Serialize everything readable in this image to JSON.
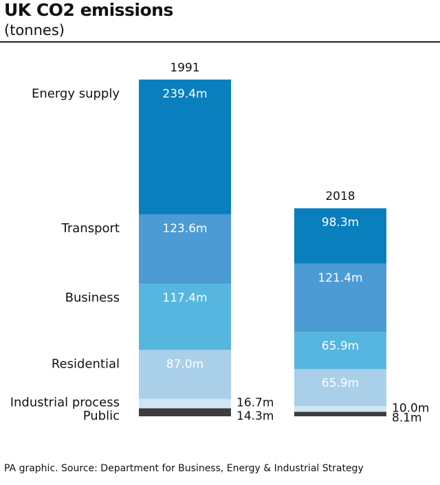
{
  "header": {
    "title": "UK CO2 emissions",
    "subtitle": "(tonnes)"
  },
  "footer": {
    "source": "PA graphic. Source: Department for Business, Energy & Industrial Strategy"
  },
  "chart_data": {
    "type": "bar",
    "stacked": true,
    "title": "UK CO2 emissions",
    "subtitle": "(tonnes)",
    "unit": "m tonnes",
    "categories": [
      "1991",
      "2018"
    ],
    "series": [
      {
        "name": "Public",
        "values": [
          14.3,
          8.1
        ],
        "labels": [
          "14.3m",
          "8.1m"
        ],
        "color": "#3d3d3f"
      },
      {
        "name": "Industrial process",
        "values": [
          16.7,
          10.0
        ],
        "labels": [
          "16.7m",
          "10.0m"
        ],
        "color": "#cfe6f4"
      },
      {
        "name": "Residential",
        "values": [
          87.0,
          65.9
        ],
        "labels": [
          "87.0m",
          "65.9m"
        ],
        "color": "#a9d0e8"
      },
      {
        "name": "Business",
        "values": [
          117.4,
          65.9
        ],
        "labels": [
          "117.4m",
          "65.9m"
        ],
        "color": "#56b6e0"
      },
      {
        "name": "Transport",
        "values": [
          123.6,
          121.4
        ],
        "labels": [
          "123.6m",
          "121.4m"
        ],
        "color": "#4c9bd5"
      },
      {
        "name": "Energy supply",
        "values": [
          239.4,
          98.3
        ],
        "labels": [
          "239.4m",
          "98.3m"
        ],
        "color": "#0a7fbd"
      }
    ],
    "legend": "left"
  }
}
